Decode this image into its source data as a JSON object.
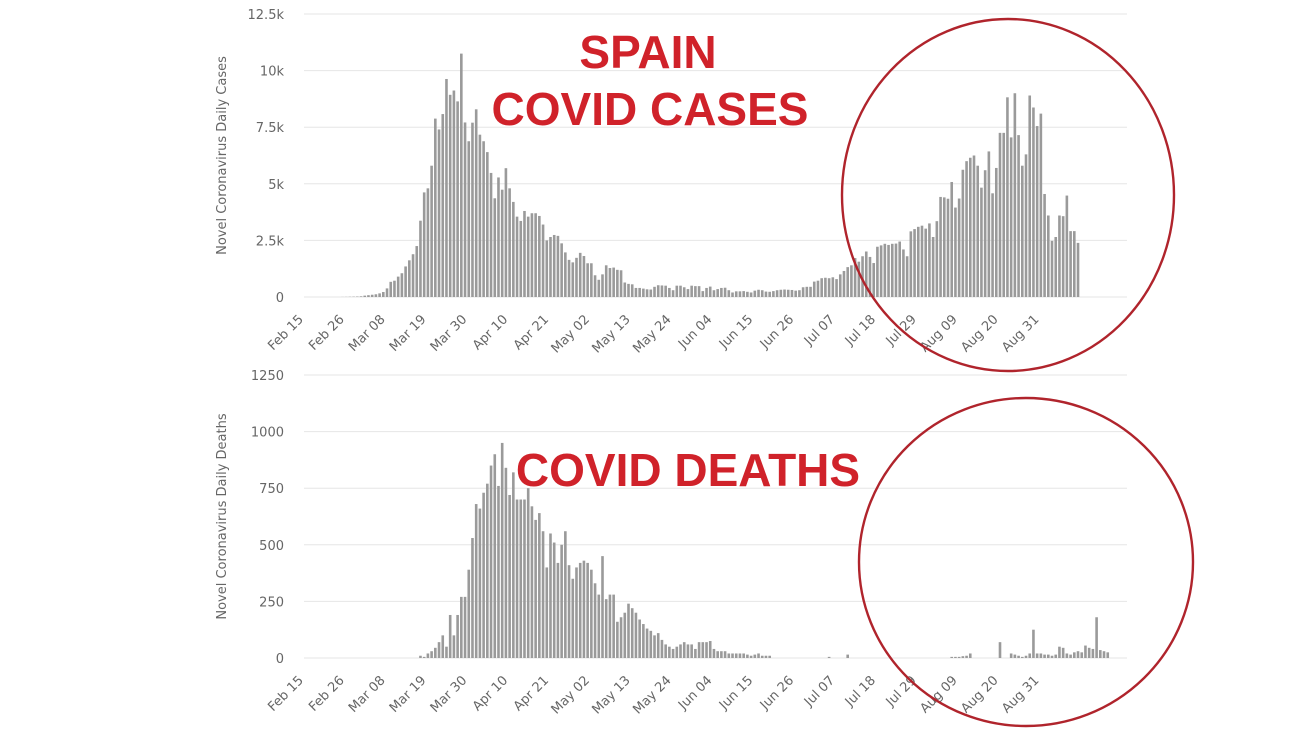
{
  "chart_data": [
    {
      "type": "bar",
      "ylabel": "Novel Coronavirus Daily Cases",
      "ylim": [
        0,
        12500
      ],
      "yticks": [
        {
          "value": 0,
          "label": "0"
        },
        {
          "value": 2500,
          "label": "2.5k"
        },
        {
          "value": 5000,
          "label": "5k"
        },
        {
          "value": 7500,
          "label": "7.5k"
        },
        {
          "value": 10000,
          "label": "10k"
        },
        {
          "value": 12500,
          "label": "12.5k"
        }
      ],
      "xticks": [
        "Feb 15",
        "Feb 26",
        "Mar 08",
        "Mar 19",
        "Mar 30",
        "Apr 10",
        "Apr 21",
        "May 02",
        "May 13",
        "May 24",
        "Jun 04",
        "Jun 15",
        "Jun 26",
        "Jul 07",
        "Jul 18",
        "Jul 29",
        "Aug 09",
        "Aug 20",
        "Aug 31"
      ],
      "x_start": "2020-02-15",
      "grid": true,
      "values": [
        0,
        0,
        0,
        0,
        0,
        0,
        0,
        0,
        0,
        0,
        4,
        6,
        10,
        14,
        20,
        30,
        60,
        80,
        100,
        120,
        160,
        220,
        380,
        670,
        720,
        900,
        1050,
        1350,
        1620,
        1890,
        2250,
        3370,
        4620,
        4800,
        5800,
        7880,
        7400,
        8080,
        9630,
        8930,
        9120,
        8640,
        10750,
        7710,
        6880,
        7700,
        8290,
        7170,
        6880,
        6400,
        5480,
        4360,
        5280,
        4740,
        5690,
        4800,
        4200,
        3550,
        3360,
        3800,
        3550,
        3700,
        3700,
        3580,
        3200,
        2500,
        2650,
        2740,
        2700,
        2370,
        1970,
        1640,
        1530,
        1730,
        1950,
        1810,
        1490,
        1490,
        960,
        760,
        1000,
        1400,
        1280,
        1300,
        1200,
        1180,
        640,
        580,
        560,
        400,
        400,
        370,
        340,
        330,
        450,
        520,
        510,
        500,
        400,
        300,
        500,
        500,
        430,
        350,
        500,
        480,
        480,
        260,
        400,
        460,
        300,
        350,
        400,
        410,
        300,
        200,
        250,
        250,
        260,
        230,
        200,
        280,
        320,
        300,
        240,
        230,
        260,
        300,
        320,
        330,
        320,
        310,
        280,
        300,
        430,
        450,
        450,
        680,
        720,
        830,
        850,
        830,
        870,
        790,
        1000,
        1150,
        1320,
        1400,
        1720,
        1560,
        1800,
        2010,
        1770,
        1500,
        2220,
        2280,
        2350,
        2300,
        2350,
        2360,
        2450,
        2100,
        1800,
        2900,
        3000,
        3100,
        3150,
        3020,
        3250,
        2650,
        3350,
        4420,
        4400,
        4340,
        5080,
        3950,
        4350,
        5620,
        6000,
        6150,
        6250,
        5800,
        4830,
        5600,
        6430,
        4580,
        5700,
        7250,
        7250,
        8820,
        7050,
        9000,
        7150,
        5800,
        6300,
        8900,
        8370,
        7550,
        8100,
        4550,
        3600,
        2480,
        2650,
        3600,
        3570,
        4480,
        2910,
        2910,
        2390
      ]
    },
    {
      "type": "bar",
      "ylabel": "Novel Coronavirus Daily Deaths",
      "ylim": [
        0,
        1250
      ],
      "yticks": [
        {
          "value": 0,
          "label": "0"
        },
        {
          "value": 250,
          "label": "250"
        },
        {
          "value": 500,
          "label": "500"
        },
        {
          "value": 750,
          "label": "750"
        },
        {
          "value": 1000,
          "label": "1000"
        },
        {
          "value": 1250,
          "label": "1250"
        }
      ],
      "xticks": [
        "Feb 15",
        "Feb 26",
        "Mar 08",
        "Mar 19",
        "Mar 30",
        "Apr 10",
        "Apr 21",
        "May 02",
        "May 13",
        "May 24",
        "Jun 04",
        "Jun 15",
        "Jun 26",
        "Jul 07",
        "Jul 18",
        "Jul 29",
        "Aug 09",
        "Aug 20",
        "Aug 31"
      ],
      "x_start": "2020-02-15",
      "grid": true,
      "values": [
        0,
        0,
        0,
        0,
        0,
        0,
        0,
        0,
        0,
        0,
        0,
        0,
        0,
        0,
        0,
        0,
        0,
        0,
        0,
        0,
        0,
        0,
        0,
        0,
        0,
        0,
        0,
        0,
        0,
        0,
        0,
        10,
        5,
        20,
        30,
        45,
        70,
        100,
        50,
        190,
        100,
        190,
        270,
        270,
        390,
        530,
        680,
        660,
        730,
        770,
        850,
        900,
        760,
        950,
        840,
        720,
        820,
        700,
        700,
        700,
        750,
        670,
        610,
        640,
        560,
        400,
        550,
        510,
        420,
        500,
        560,
        410,
        350,
        400,
        420,
        430,
        420,
        390,
        330,
        280,
        450,
        260,
        280,
        280,
        160,
        180,
        200,
        240,
        220,
        200,
        170,
        150,
        130,
        120,
        100,
        110,
        80,
        60,
        50,
        40,
        50,
        60,
        70,
        60,
        60,
        40,
        70,
        70,
        70,
        75,
        40,
        30,
        30,
        30,
        20,
        20,
        20,
        20,
        20,
        15,
        10,
        15,
        20,
        10,
        10,
        10,
        0,
        0,
        0,
        0,
        0,
        0,
        0,
        0,
        0,
        0,
        0,
        0,
        0,
        0,
        0,
        5,
        0,
        0,
        0,
        0,
        15,
        0,
        0,
        0,
        0,
        0,
        0,
        0,
        0,
        0,
        0,
        0,
        0,
        0,
        0,
        0,
        0,
        0,
        0,
        0,
        0,
        0,
        0,
        0,
        0,
        0,
        0,
        0,
        5,
        5,
        5,
        8,
        10,
        20,
        0,
        0,
        0,
        0,
        0,
        0,
        0,
        70,
        0,
        0,
        20,
        15,
        10,
        5,
        10,
        20,
        125,
        20,
        20,
        15,
        15,
        10,
        15,
        50,
        45,
        20,
        15,
        25,
        30,
        25,
        55,
        45,
        40,
        180,
        35,
        30,
        25
      ]
    }
  ],
  "annotations": {
    "cases_title_line1": "SPAIN",
    "cases_title_line2": "COVID CASES",
    "deaths_title": "COVID DEATHS",
    "annotation_color": "#d0222a",
    "circle_color": "#b0242c",
    "bar_color": "#9a9a9a"
  }
}
